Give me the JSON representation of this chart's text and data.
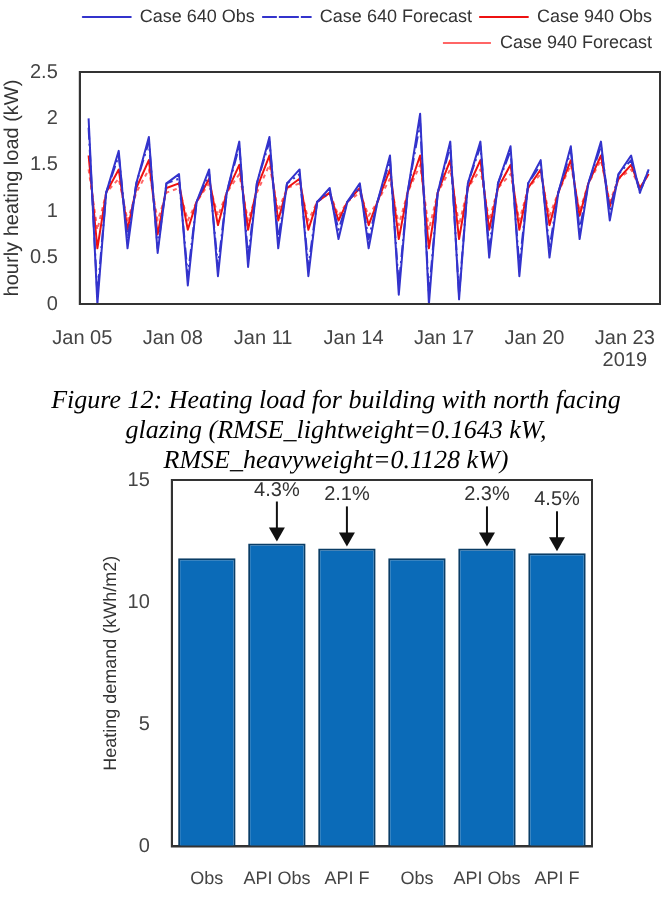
{
  "chart_data": [
    {
      "type": "line",
      "ylabel": "hourly heating load (kW)",
      "xlim": [
        "2019-01-04T22:00",
        "2019-01-24T04:00"
      ],
      "ylim": [
        0,
        2.5
      ],
      "yticks": [
        0,
        0.5,
        1,
        1.5,
        2,
        2.5
      ],
      "xticks": [
        {
          "value": "2019-01-05",
          "label": "Jan 05"
        },
        {
          "value": "2019-01-08",
          "label": "Jan 08"
        },
        {
          "value": "2019-01-11",
          "label": "Jan 11"
        },
        {
          "value": "2019-01-14",
          "label": "Jan 14"
        },
        {
          "value": "2019-01-17",
          "label": "Jan 17"
        },
        {
          "value": "2019-01-20",
          "label": "Jan 20"
        },
        {
          "value": "2019-01-23",
          "label": "Jan 23"
        }
      ],
      "x": [
        "2019-01-05T05:00",
        "2019-01-05T12:00",
        "2019-01-05T19:00",
        "2019-01-06T05:00",
        "2019-01-06T12:00",
        "2019-01-06T19:00",
        "2019-01-07T05:00",
        "2019-01-07T12:00",
        "2019-01-07T19:00",
        "2019-01-08T05:00",
        "2019-01-08T12:00",
        "2019-01-08T19:00",
        "2019-01-09T05:00",
        "2019-01-09T12:00",
        "2019-01-09T19:00",
        "2019-01-10T05:00",
        "2019-01-10T12:00",
        "2019-01-10T19:00",
        "2019-01-11T05:00",
        "2019-01-11T12:00",
        "2019-01-11T19:00",
        "2019-01-12T05:00",
        "2019-01-12T12:00",
        "2019-01-12T19:00",
        "2019-01-13T05:00",
        "2019-01-13T12:00",
        "2019-01-13T19:00",
        "2019-01-14T05:00",
        "2019-01-14T12:00",
        "2019-01-14T19:00",
        "2019-01-15T05:00",
        "2019-01-15T12:00",
        "2019-01-15T19:00",
        "2019-01-16T05:00",
        "2019-01-16T12:00",
        "2019-01-16T19:00",
        "2019-01-17T05:00",
        "2019-01-17T12:00",
        "2019-01-17T19:00",
        "2019-01-18T05:00",
        "2019-01-18T12:00",
        "2019-01-18T19:00",
        "2019-01-19T05:00",
        "2019-01-19T12:00",
        "2019-01-19T19:00",
        "2019-01-20T05:00",
        "2019-01-20T12:00",
        "2019-01-20T19:00",
        "2019-01-21T05:00",
        "2019-01-21T12:00",
        "2019-01-21T19:00",
        "2019-01-22T05:00",
        "2019-01-22T12:00",
        "2019-01-22T19:00",
        "2019-01-23T05:00",
        "2019-01-23T12:00",
        "2019-01-23T19:00"
      ],
      "series": [
        {
          "name": "Case 640 Obs",
          "color": "#3333cc",
          "line_style": "solid",
          "values": [
            2.0,
            0.0,
            1.2,
            1.65,
            0.6,
            1.3,
            1.8,
            0.55,
            1.3,
            1.4,
            0.2,
            1.1,
            1.45,
            0.3,
            1.2,
            1.75,
            0.4,
            1.3,
            1.8,
            0.6,
            1.3,
            1.45,
            0.3,
            1.1,
            1.25,
            0.7,
            1.1,
            1.3,
            0.6,
            1.1,
            1.6,
            0.1,
            1.2,
            2.05,
            0.0,
            1.2,
            1.75,
            0.05,
            1.3,
            1.75,
            0.5,
            1.3,
            1.7,
            0.3,
            1.3,
            1.55,
            0.5,
            1.2,
            1.7,
            0.7,
            1.3,
            1.75,
            0.9,
            1.4,
            1.6,
            1.2,
            1.45
          ]
        },
        {
          "name": "Case 640 Forecast",
          "color": "#3333cc",
          "line_style": "dashed",
          "values": [
            1.9,
            0.1,
            1.2,
            1.6,
            0.7,
            1.3,
            1.75,
            0.6,
            1.3,
            1.35,
            0.3,
            1.1,
            1.4,
            0.4,
            1.2,
            1.7,
            0.5,
            1.3,
            1.75,
            0.7,
            1.3,
            1.4,
            0.4,
            1.1,
            1.2,
            0.8,
            1.1,
            1.25,
            0.7,
            1.1,
            1.55,
            0.2,
            1.2,
            1.95,
            0.1,
            1.2,
            1.7,
            0.1,
            1.3,
            1.7,
            0.6,
            1.3,
            1.65,
            0.4,
            1.3,
            1.5,
            0.6,
            1.2,
            1.65,
            0.8,
            1.3,
            1.7,
            1.0,
            1.4,
            1.55,
            1.2,
            1.45
          ]
        },
        {
          "name": "Case 940 Obs",
          "color": "#ee1111",
          "line_style": "solid",
          "values": [
            1.6,
            0.6,
            1.2,
            1.45,
            0.8,
            1.25,
            1.55,
            0.75,
            1.25,
            1.3,
            0.8,
            1.1,
            1.35,
            0.85,
            1.2,
            1.5,
            0.8,
            1.25,
            1.6,
            0.9,
            1.25,
            1.35,
            0.8,
            1.1,
            1.2,
            0.9,
            1.1,
            1.25,
            0.85,
            1.1,
            1.45,
            0.7,
            1.2,
            1.6,
            0.6,
            1.2,
            1.55,
            0.7,
            1.25,
            1.55,
            0.8,
            1.25,
            1.5,
            0.8,
            1.25,
            1.45,
            0.85,
            1.2,
            1.55,
            0.95,
            1.3,
            1.6,
            1.05,
            1.35,
            1.5,
            1.25,
            1.4
          ]
        },
        {
          "name": "Case 940 Forecast",
          "color": "#ff6666",
          "line_style": "dotted",
          "values": [
            1.45,
            0.8,
            1.2,
            1.35,
            0.9,
            1.2,
            1.45,
            0.9,
            1.2,
            1.25,
            0.9,
            1.1,
            1.3,
            0.95,
            1.2,
            1.4,
            0.9,
            1.2,
            1.5,
            1.0,
            1.25,
            1.3,
            0.9,
            1.1,
            1.2,
            0.95,
            1.1,
            1.2,
            0.95,
            1.1,
            1.35,
            0.85,
            1.2,
            1.5,
            0.8,
            1.2,
            1.45,
            0.85,
            1.25,
            1.45,
            0.9,
            1.25,
            1.4,
            0.9,
            1.25,
            1.4,
            0.95,
            1.2,
            1.5,
            1.0,
            1.3,
            1.55,
            1.1,
            1.35,
            1.45,
            1.25,
            1.4
          ]
        }
      ],
      "legend": "top right",
      "grid": false,
      "annotations": [
        "2019",
        "Figure 12: Heating load for building with north facing glazing (RMSE_lightweight=0.1643 kW, RMSE_heavyweight=0.1128 kW)"
      ]
    },
    {
      "type": "bar",
      "ylabel": "Heating demand (kWh/m2)",
      "categories": [
        "Obs",
        "API Obs",
        "API F",
        "Obs",
        "API Obs",
        "API F"
      ],
      "values": [
        11.8,
        12.4,
        12.2,
        11.8,
        12.2,
        12.0
      ],
      "color": "#0b6bb8",
      "ylim": [
        0,
        15
      ],
      "yticks": [
        0,
        5,
        10,
        15
      ],
      "grid": false,
      "legend": false,
      "annotations": [
        {
          "text": "4.3%",
          "x": "API Obs",
          "y": 12.4
        },
        {
          "text": "2.1%",
          "x": "API F",
          "y": 12.2
        },
        {
          "text": "2.3%",
          "y": 12.2
        },
        {
          "text": "4.5%",
          "y": 12.0
        }
      ]
    }
  ]
}
